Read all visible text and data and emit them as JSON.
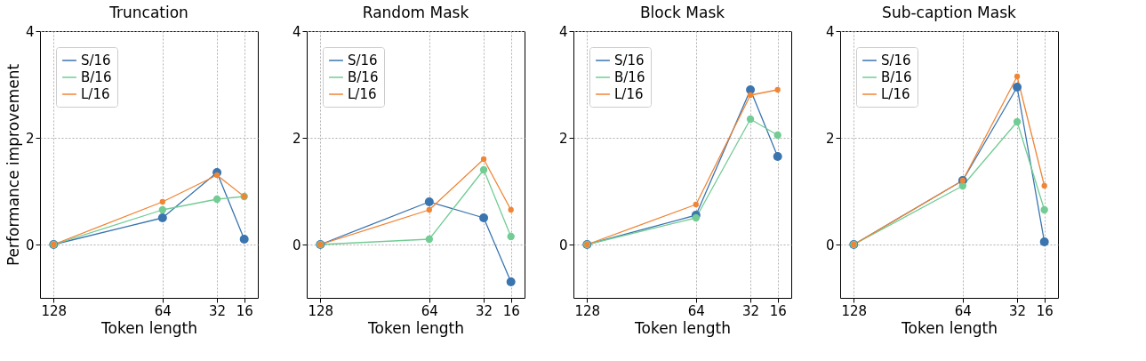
{
  "chart_data": [
    {
      "type": "line",
      "title": "Truncation",
      "xlabel": "Token length",
      "ylabel": "Performance improvement",
      "x": [
        128,
        64,
        32,
        16
      ],
      "xlim": [
        136,
        8
      ],
      "xticks": [
        128,
        64,
        32,
        16
      ],
      "ylim": [
        -1,
        4
      ],
      "yticks": [
        0,
        2,
        4
      ],
      "grid": true,
      "legend": "top left",
      "marker": "circle",
      "line_style": "solid",
      "series": [
        {
          "name": "S/16",
          "color": "#3a75b0",
          "values": [
            0,
            0.5,
            1.35,
            0.1
          ]
        },
        {
          "name": "B/16",
          "color": "#72cc94",
          "values": [
            0,
            0.65,
            0.85,
            0.9
          ]
        },
        {
          "name": "L/16",
          "color": "#f08536",
          "values": [
            0,
            0.8,
            1.3,
            0.9
          ]
        }
      ]
    },
    {
      "type": "line",
      "title": "Random Mask",
      "xlabel": "Token length",
      "x": [
        128,
        64,
        32,
        16
      ],
      "xlim": [
        136,
        8
      ],
      "xticks": [
        128,
        64,
        32,
        16
      ],
      "ylim": [
        -1,
        4
      ],
      "yticks": [
        0,
        2,
        4
      ],
      "grid": true,
      "legend": "top left",
      "marker": "circle",
      "line_style": "solid",
      "series": [
        {
          "name": "S/16",
          "color": "#3a75b0",
          "values": [
            0,
            0.8,
            0.5,
            -0.7
          ]
        },
        {
          "name": "B/16",
          "color": "#72cc94",
          "values": [
            0,
            0.1,
            1.4,
            0.15
          ]
        },
        {
          "name": "L/16",
          "color": "#f08536",
          "values": [
            0,
            0.65,
            1.6,
            0.65
          ]
        }
      ]
    },
    {
      "type": "line",
      "title": "Block Mask",
      "xlabel": "Token length",
      "x": [
        128,
        64,
        32,
        16
      ],
      "xlim": [
        136,
        8
      ],
      "xticks": [
        128,
        64,
        32,
        16
      ],
      "ylim": [
        -1,
        4
      ],
      "yticks": [
        0,
        2,
        4
      ],
      "grid": true,
      "legend": "top left",
      "marker": "circle",
      "line_style": "solid",
      "series": [
        {
          "name": "S/16",
          "color": "#3a75b0",
          "values": [
            0,
            0.55,
            2.9,
            1.65
          ]
        },
        {
          "name": "B/16",
          "color": "#72cc94",
          "values": [
            0,
            0.5,
            2.35,
            2.05
          ]
        },
        {
          "name": "L/16",
          "color": "#f08536",
          "values": [
            0,
            0.75,
            2.8,
            2.9
          ]
        }
      ]
    },
    {
      "type": "line",
      "title": "Sub-caption Mask",
      "xlabel": "Token length",
      "x": [
        128,
        64,
        32,
        16
      ],
      "xlim": [
        136,
        8
      ],
      "xticks": [
        128,
        64,
        32,
        16
      ],
      "ylim": [
        -1,
        4
      ],
      "yticks": [
        0,
        2,
        4
      ],
      "grid": true,
      "legend": "top left",
      "marker": "circle",
      "line_style": "solid",
      "series": [
        {
          "name": "S/16",
          "color": "#3a75b0",
          "values": [
            0,
            1.2,
            2.95,
            0.05
          ]
        },
        {
          "name": "B/16",
          "color": "#72cc94",
          "values": [
            0,
            1.1,
            2.3,
            0.65
          ]
        },
        {
          "name": "L/16",
          "color": "#f08536",
          "values": [
            0,
            1.2,
            3.15,
            1.1
          ]
        }
      ]
    }
  ]
}
